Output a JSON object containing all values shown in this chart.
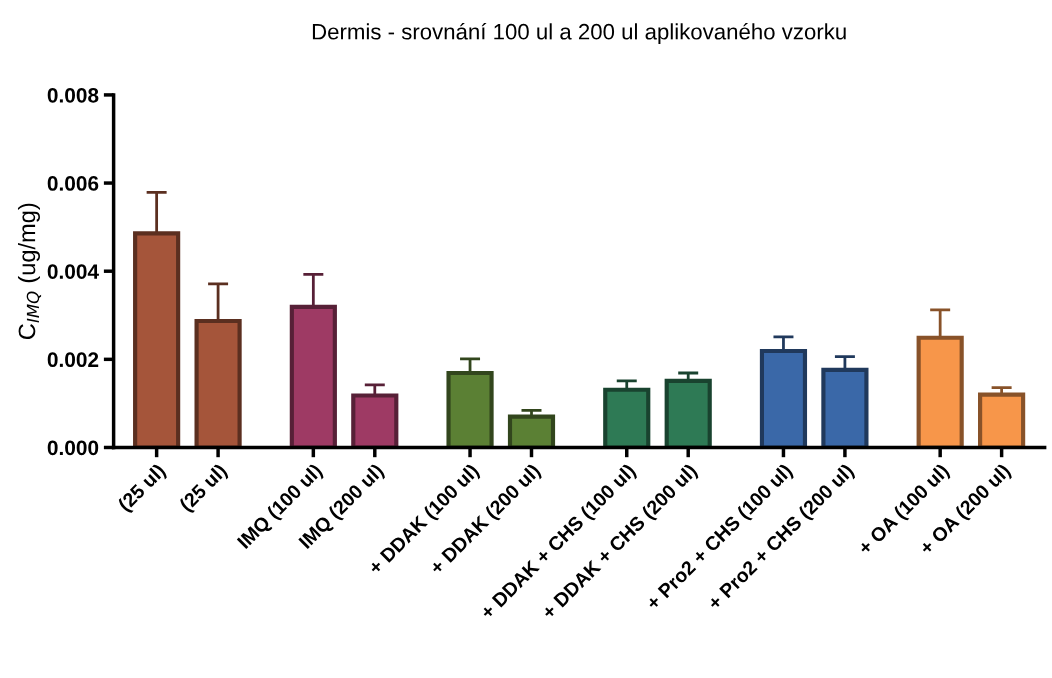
{
  "chart_data": {
    "type": "bar",
    "title": "Dermis - srovnání 100 ul a 200 ul aplikovaného vzorku",
    "ylabel": "C$_{IMQ}$ (ug/mg)",
    "categories": [
      "(25 ul)",
      "(25 ul)",
      "IMQ (100 ul)",
      "IMQ (200 ul)",
      "+ DDAK (100 ul)",
      "+ DDAK (200 ul)",
      "+ DDAK + CHS (100 ul)",
      "+ DDAK + CHS (200 ul)",
      "+ Pro2 + CHS (100 ul)",
      "+ Pro2 + CHS (200 ul)",
      "+ OA (100 ul)",
      "+ OA (200 ul)"
    ],
    "values": [
      0.00486,
      0.00287,
      0.00319,
      0.00118,
      0.00169,
      0.0007,
      0.00131,
      0.00151,
      0.00219,
      0.00176,
      0.00249,
      0.0012
    ],
    "errors": [
      [
        0.00486,
        0.00579
      ],
      [
        0.00287,
        0.00371
      ],
      [
        0.00319,
        0.00393
      ],
      [
        0.00118,
        0.00142
      ],
      [
        0.00169,
        0.00201
      ],
      [
        0.0007,
        0.00084
      ],
      [
        0.00131,
        0.00151
      ],
      [
        0.00151,
        0.00169
      ],
      [
        0.00219,
        0.00251
      ],
      [
        0.00176,
        0.00206
      ],
      [
        0.00249,
        0.00312
      ],
      [
        0.0012,
        0.00136
      ]
    ],
    "colors": [
      "#a5553a",
      "#a5553a",
      "#9e3a64",
      "#9e3a64",
      "#5b8034",
      "#5b8034",
      "#2e7a55",
      "#2e7a55",
      "#3a68a8",
      "#3a68a8",
      "#f7964a",
      "#f7964a"
    ],
    "ylim": [
      0,
      0.008
    ],
    "yticks": [
      {
        "value": 0,
        "label": "0.000"
      },
      {
        "value": 0.002,
        "label": "0.002"
      },
      {
        "value": 0.004,
        "label": "0.004"
      },
      {
        "value": 0.006,
        "label": "0.006"
      },
      {
        "value": 0.008,
        "label": "0.008"
      }
    ],
    "grid": false
  }
}
